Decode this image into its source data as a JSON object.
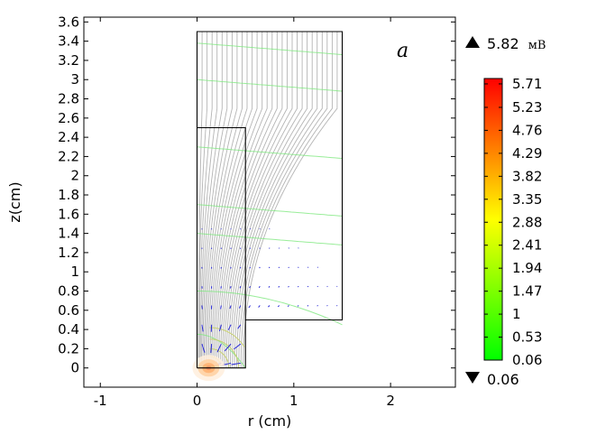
{
  "chart_data": {
    "type": "contour",
    "xlabel": "r (cm)",
    "ylabel": "z(cm)",
    "xlim": [
      -1.17,
      2.67
    ],
    "ylim": [
      -0.2,
      3.65
    ],
    "x_ticks": [
      "-1",
      "0",
      "1",
      "2"
    ],
    "x_tick_values": [
      -1,
      0,
      1,
      2
    ],
    "y_ticks": [
      "0",
      "0.2",
      "0.4",
      "0.6",
      "0.8",
      "1",
      "1.2",
      "1.4",
      "1.6",
      "1.8",
      "2",
      "2.2",
      "2.4",
      "2.6",
      "2.8",
      "3",
      "3.2",
      "3.4",
      "3.6"
    ],
    "y_tick_values": [
      0,
      0.2,
      0.4,
      0.6,
      0.8,
      1,
      1.2,
      1.4,
      1.6,
      1.8,
      2,
      2.2,
      2.4,
      2.6,
      2.8,
      3,
      3.2,
      3.4,
      3.6
    ],
    "annotation": "a",
    "geometry_outline": [
      [
        0,
        0
      ],
      [
        0.5,
        0
      ],
      [
        0.5,
        0.5
      ],
      [
        1.5,
        0.5
      ],
      [
        1.5,
        3.5
      ],
      [
        0,
        3.5
      ],
      [
        0,
        0
      ]
    ],
    "inner_step": [
      [
        0,
        2.5
      ],
      [
        0.5,
        2.5
      ],
      [
        0.5,
        0.5
      ]
    ],
    "colorbar": {
      "max_label": "5.82",
      "max_unit": "мВ",
      "min_label": "0.06",
      "ticks": [
        "5.71",
        "5.23",
        "4.76",
        "4.29",
        "3.82",
        "3.35",
        "2.88",
        "2.41",
        "1.94",
        "1.47",
        "1",
        "0.53",
        "0.06"
      ],
      "tick_values": [
        5.71,
        5.23,
        4.76,
        4.29,
        3.82,
        3.35,
        2.88,
        2.41,
        1.94,
        1.47,
        1.0,
        0.53,
        0.06
      ],
      "range": [
        0.06,
        5.82
      ],
      "colors": [
        "#00ff00",
        "#ffff00",
        "#ff0000"
      ]
    },
    "colors": {
      "streamline": "#b4b4b4",
      "contour": "#80e880",
      "arrow": "#2a2ad8",
      "outline": "#000000"
    }
  }
}
